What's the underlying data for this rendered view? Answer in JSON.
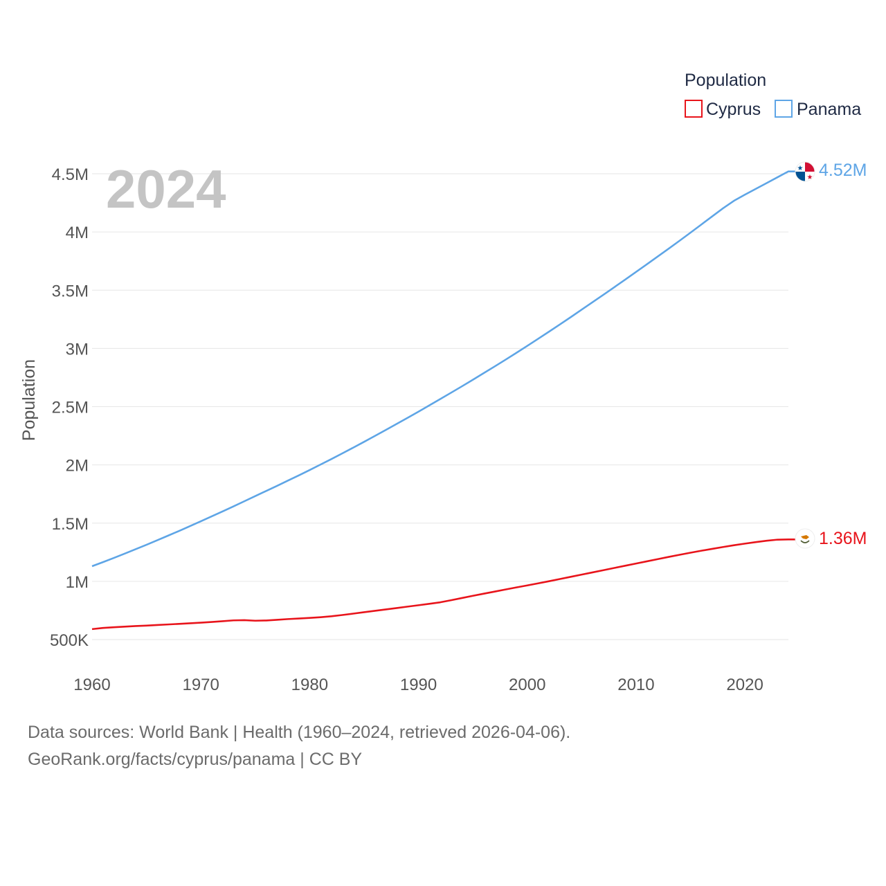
{
  "chart_data": {
    "type": "line",
    "title": "",
    "current_year": "2024",
    "xlabel": "",
    "ylabel": "Population",
    "xlim": [
      1960,
      2024
    ],
    "ylim": [
      300000,
      4600000
    ],
    "x_ticks": [
      1960,
      1970,
      1980,
      1990,
      2000,
      2010,
      2020
    ],
    "x_tick_labels": [
      "1960",
      "1970",
      "1980",
      "1990",
      "2000",
      "2010",
      "2020"
    ],
    "y_ticks": [
      500000,
      1000000,
      1500000,
      2000000,
      2500000,
      3000000,
      3500000,
      4000000,
      4500000
    ],
    "y_tick_labels": [
      "500K",
      "1M",
      "1.5M",
      "2M",
      "2.5M",
      "3M",
      "3.5M",
      "4M",
      "4.5M"
    ],
    "grid": true,
    "legend": {
      "title": "Population",
      "position": "top-right"
    },
    "series": [
      {
        "name": "Cyprus",
        "color": "#e8141b",
        "end_label": "1.36M",
        "flag_icon": "cyprus-flag-icon",
        "x": [
          1960,
          1961,
          1962,
          1963,
          1964,
          1965,
          1966,
          1967,
          1968,
          1969,
          1970,
          1971,
          1972,
          1973,
          1974,
          1975,
          1976,
          1977,
          1978,
          1979,
          1980,
          1981,
          1982,
          1983,
          1984,
          1985,
          1986,
          1987,
          1988,
          1989,
          1990,
          1991,
          1992,
          1993,
          1994,
          1995,
          1996,
          1997,
          1998,
          1999,
          2000,
          2001,
          2002,
          2003,
          2004,
          2005,
          2006,
          2007,
          2008,
          2009,
          2010,
          2011,
          2012,
          2013,
          2014,
          2015,
          2016,
          2017,
          2018,
          2019,
          2020,
          2021,
          2022,
          2023,
          2024
        ],
        "values": [
          590000,
          600000,
          606000,
          611000,
          616000,
          620000,
          625000,
          630000,
          635000,
          640000,
          645000,
          651000,
          658000,
          665000,
          667000,
          662000,
          664000,
          670000,
          676000,
          681000,
          686000,
          692000,
          700000,
          711000,
          723000,
          735000,
          747000,
          759000,
          771000,
          783000,
          795000,
          807000,
          820000,
          838000,
          857000,
          876000,
          894000,
          912000,
          930000,
          948000,
          965000,
          983000,
          1001000,
          1020000,
          1039000,
          1058000,
          1077000,
          1096000,
          1115000,
          1134000,
          1153000,
          1172000,
          1191000,
          1210000,
          1228000,
          1246000,
          1263000,
          1279000,
          1295000,
          1310000,
          1324000,
          1337000,
          1349000,
          1358000,
          1360000
        ]
      },
      {
        "name": "Panama",
        "color": "#5ea5e6",
        "end_label": "4.52M",
        "flag_icon": "panama-flag-icon",
        "x": [
          1960,
          1961,
          1962,
          1963,
          1964,
          1965,
          1966,
          1967,
          1968,
          1969,
          1970,
          1971,
          1972,
          1973,
          1974,
          1975,
          1976,
          1977,
          1978,
          1979,
          1980,
          1981,
          1982,
          1983,
          1984,
          1985,
          1986,
          1987,
          1988,
          1989,
          1990,
          1991,
          1992,
          1993,
          1994,
          1995,
          1996,
          1997,
          1998,
          1999,
          2000,
          2001,
          2002,
          2003,
          2004,
          2005,
          2006,
          2007,
          2008,
          2009,
          2010,
          2011,
          2012,
          2013,
          2014,
          2015,
          2016,
          2017,
          2018,
          2019,
          2020,
          2021,
          2022,
          2023,
          2024
        ],
        "values": [
          1130000,
          1165000,
          1201000,
          1238000,
          1276000,
          1314000,
          1353000,
          1393000,
          1433000,
          1474000,
          1516000,
          1558000,
          1601000,
          1644000,
          1688000,
          1732000,
          1776000,
          1820000,
          1865000,
          1910000,
          1956000,
          2003000,
          2050000,
          2099000,
          2148000,
          2198000,
          2249000,
          2300000,
          2352000,
          2404000,
          2457000,
          2511000,
          2565000,
          2620000,
          2675000,
          2731000,
          2788000,
          2845000,
          2903000,
          2962000,
          3022000,
          3083000,
          3144000,
          3206000,
          3269000,
          3333000,
          3397000,
          3461000,
          3526000,
          3591000,
          3657000,
          3723000,
          3790000,
          3857000,
          3925000,
          3994000,
          4064000,
          4134000,
          4204000,
          4268000,
          4320000,
          4370000,
          4420000,
          4470000,
          4520000
        ]
      }
    ]
  },
  "footer": {
    "source_line": "Data sources: World Bank | Health (1960–2024, retrieved 2026-04-06).",
    "credit_line": "GeoRank.org/facts/cyprus/panama | CC BY"
  }
}
